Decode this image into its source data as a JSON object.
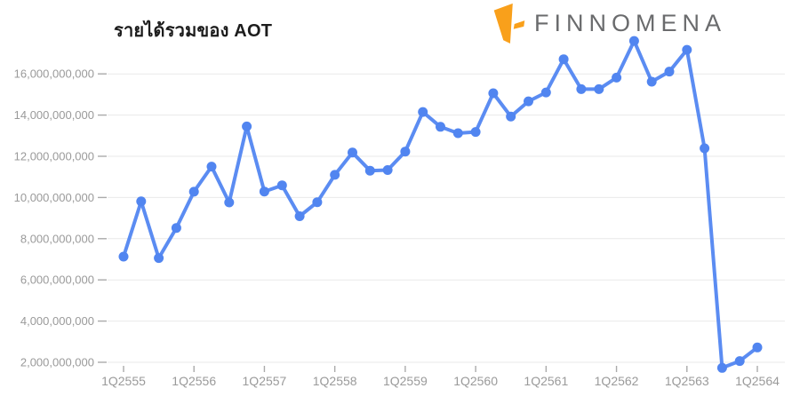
{
  "header": {
    "title": "รายได้รวมของ AOT",
    "brand": "FINNOMENA"
  },
  "colors": {
    "series_blue": "#5B8CF2",
    "point_blue": "#5185F0",
    "brand_orange": "#F9A01B",
    "brand_gray": "#6A6B6D",
    "grid_gray": "#E9E9E9",
    "tick_gray": "#AAAAAA",
    "axis_text_gray": "#9A9A9A",
    "title_black": "#1C1C1C"
  },
  "chart_data": {
    "type": "line",
    "title": "รายได้รวมของ AOT",
    "xlabel": "",
    "ylabel": "",
    "legend": "none",
    "grid": "horizontal",
    "ylim": [
      1500000000,
      18000000000
    ],
    "x_tick_step": 4,
    "categories": [
      "1Q2555",
      "2Q2555",
      "3Q2555",
      "4Q2555",
      "1Q2556",
      "2Q2556",
      "3Q2556",
      "4Q2556",
      "1Q2557",
      "2Q2557",
      "3Q2557",
      "4Q2557",
      "1Q2558",
      "2Q2558",
      "3Q2558",
      "4Q2558",
      "1Q2559",
      "2Q2559",
      "3Q2559",
      "4Q2559",
      "1Q2560",
      "2Q2560",
      "3Q2560",
      "4Q2560",
      "1Q2561",
      "2Q2561",
      "3Q2561",
      "4Q2561",
      "1Q2562",
      "2Q2562",
      "3Q2562",
      "4Q2562",
      "1Q2563",
      "2Q2563",
      "3Q2563",
      "4Q2563",
      "1Q2564"
    ],
    "values": [
      7130000000,
      9810000000,
      7060000000,
      8520000000,
      10280000000,
      11500000000,
      9760000000,
      13450000000,
      10290000000,
      10590000000,
      9090000000,
      9770000000,
      11100000000,
      12180000000,
      11300000000,
      11330000000,
      12230000000,
      14150000000,
      13430000000,
      13120000000,
      13180000000,
      15060000000,
      13930000000,
      14670000000,
      15100000000,
      16710000000,
      15260000000,
      15260000000,
      15820000000,
      17600000000,
      15620000000,
      16110000000,
      17170000000,
      12390000000,
      1730000000,
      2060000000,
      2720000000
    ],
    "x_tick_labels": [
      "1Q2555",
      "1Q2556",
      "1Q2557",
      "1Q2558",
      "1Q2559",
      "1Q2560",
      "1Q2561",
      "1Q2562",
      "1Q2563",
      "1Q2564"
    ],
    "y_ticks": [
      2000000000,
      4000000000,
      6000000000,
      8000000000,
      10000000000,
      12000000000,
      14000000000,
      16000000000
    ],
    "y_tick_labels": [
      "2,000,000,000",
      "4,000,000,000",
      "6,000,000,000",
      "8,000,000,000",
      "10,000,000,000",
      "12,000,000,000",
      "14,000,000,000",
      "16,000,000,000"
    ]
  }
}
